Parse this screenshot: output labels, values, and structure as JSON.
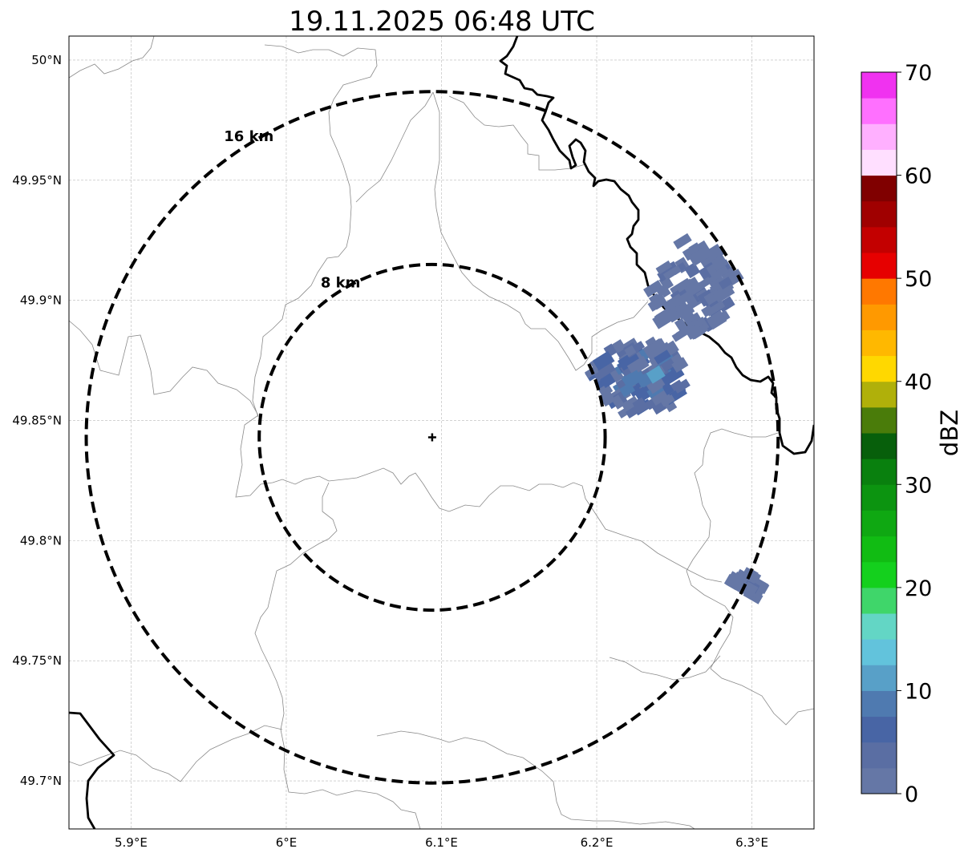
{
  "title": "19.11.2025 06:48 UTC",
  "map": {
    "lon_range": [
      5.86,
      6.34
    ],
    "lat_range": [
      49.68,
      50.01
    ],
    "grid": true,
    "lon_ticks": [
      {
        "value": 5.9,
        "label": "5.9°E"
      },
      {
        "value": 6.0,
        "label": "6°E"
      },
      {
        "value": 6.1,
        "label": "6.1°E"
      },
      {
        "value": 6.2,
        "label": "6.2°E"
      },
      {
        "value": 6.3,
        "label": "6.3°E"
      }
    ],
    "lat_ticks": [
      {
        "value": 50.0,
        "label": "50°N"
      },
      {
        "value": 49.95,
        "label": "49.95°N"
      },
      {
        "value": 49.9,
        "label": "49.9°N"
      },
      {
        "value": 49.85,
        "label": "49.85°N"
      },
      {
        "value": 49.8,
        "label": "49.8°N"
      },
      {
        "value": 49.75,
        "label": "49.75°N"
      },
      {
        "value": 49.7,
        "label": "49.7°N"
      }
    ],
    "radar_site": {
      "lon": 6.094,
      "lat": 49.843
    },
    "range_rings": [
      {
        "label": "8 km",
        "km": 8
      },
      {
        "label": "16 km",
        "km": 16
      }
    ],
    "echo_clusters": [
      {
        "name": "north-east cell",
        "lon": 6.262,
        "lat": 49.905,
        "max_dbz": 6
      },
      {
        "name": "central-east cell",
        "lon": 6.228,
        "lat": 49.868,
        "max_dbz": 14
      },
      {
        "name": "south-east cell",
        "lon": 6.298,
        "lat": 49.781,
        "max_dbz": 4
      }
    ]
  },
  "colorbar": {
    "label": "dBZ",
    "min": 0,
    "max": 70,
    "step": 2.5,
    "ticks": [
      "0",
      "10",
      "20",
      "30",
      "40",
      "50",
      "60",
      "70"
    ],
    "colors": [
      "#6577a6",
      "#5a6ea3",
      "#4865a5",
      "#4f7ab0",
      "#58a0c8",
      "#62c3dc",
      "#63d6c5",
      "#3fd66a",
      "#14d01d",
      "#11bc13",
      "#0fa812",
      "#0c9410",
      "#09800e",
      "#075f0b",
      "#4a7c0a",
      "#b0b00a",
      "#ffd800",
      "#ffb800",
      "#ff9900",
      "#ff7800",
      "#e60000",
      "#c30000",
      "#a00000",
      "#800000",
      "#ffdfff",
      "#ffb0ff",
      "#ff70ff",
      "#f032f0"
    ]
  },
  "colors": {
    "border": "#000000",
    "admin_line": "#8a8a8a",
    "grid": "#b8b8b8"
  }
}
